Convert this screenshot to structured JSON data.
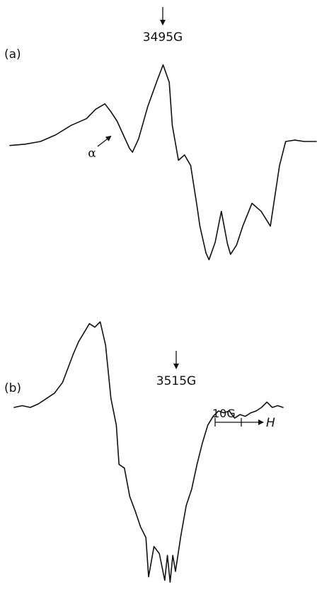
{
  "chart_data": [
    {
      "type": "line",
      "panel_label": "(a)",
      "field_marker": "3495G",
      "annotation": "α",
      "series": [
        {
          "x": [
            0,
            5,
            10,
            15,
            20,
            25,
            28,
            31,
            33,
            35,
            37,
            39,
            40,
            42,
            45,
            48,
            50,
            52,
            53,
            55,
            57,
            59,
            61,
            62,
            64,
            65,
            67,
            69,
            71,
            72,
            74,
            76,
            79,
            82,
            85,
            88,
            90,
            93,
            96,
            100
          ],
          "y": [
            -0.03,
            -0.02,
            0,
            0.05,
            0.12,
            0.17,
            0.24,
            0.28,
            0.22,
            0.15,
            0.05,
            -0.05,
            -0.08,
            0.02,
            0.26,
            0.45,
            0.57,
            0.44,
            0.12,
            -0.14,
            -0.1,
            -0.18,
            -0.47,
            -0.63,
            -0.83,
            -0.88,
            -0.75,
            -0.52,
            -0.76,
            -0.84,
            -0.77,
            -0.63,
            -0.46,
            -0.52,
            -0.63,
            -0.18,
            0,
            0.01,
            0,
            0
          ]
        }
      ]
    },
    {
      "type": "line",
      "panel_label": "(b)",
      "field_marker": "3515G",
      "scale_bar": {
        "label": "10G",
        "axis": "H"
      },
      "series": [
        {
          "x": [
            0,
            3,
            6,
            9,
            12,
            15,
            18,
            20,
            22,
            24,
            26,
            28,
            30,
            32,
            34,
            36,
            38,
            39,
            41,
            43,
            45,
            47,
            49,
            50,
            52,
            54,
            56,
            57,
            58,
            59,
            60,
            62,
            64,
            66,
            68,
            70,
            72,
            74,
            76,
            78,
            80,
            82,
            84,
            86,
            88,
            90,
            92,
            94,
            96,
            98,
            100
          ],
          "y": [
            0,
            0.01,
            0,
            0.02,
            0.05,
            0.08,
            0.14,
            0.22,
            0.3,
            0.37,
            0.42,
            0.47,
            0.45,
            0.48,
            0.35,
            0.05,
            -0.1,
            -0.32,
            -0.34,
            -0.5,
            -0.58,
            -0.67,
            -0.73,
            -0.95,
            -0.78,
            -0.82,
            -0.97,
            -0.83,
            -0.98,
            -0.83,
            -0.92,
            -0.72,
            -0.55,
            -0.46,
            -0.32,
            -0.2,
            -0.1,
            -0.05,
            -0.02,
            -0.03,
            -0.02,
            -0.06,
            -0.04,
            -0.05,
            -0.03,
            -0.02,
            0,
            0.03,
            0,
            0.01,
            0
          ]
        }
      ]
    }
  ]
}
